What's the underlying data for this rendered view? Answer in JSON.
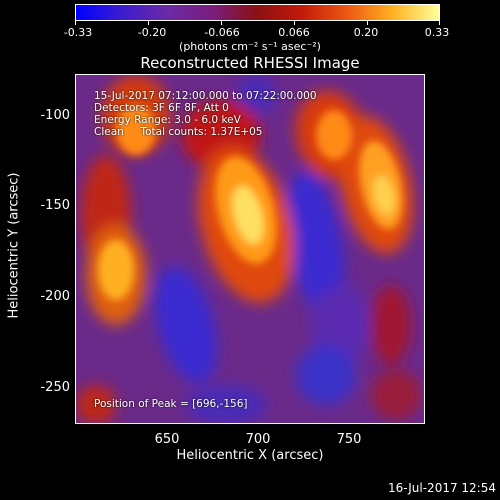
{
  "colorbar": {
    "ticks": [
      "-0.33",
      "-0.20",
      "-0.066",
      "0.066",
      "0.20",
      "0.33"
    ],
    "unit": "(photons cm⁻² s⁻¹ asec⁻²)"
  },
  "title": "Reconstructed RHESSI Image",
  "info": {
    "time_range": "15-Jul-2017 07:12:00.000 to 07:22:00.000",
    "detectors": "Detectors: 3F 6F 8F, Att 0",
    "energy": "Energy Range: 3.0 - 6.0 keV",
    "clean": "Clean     Total counts: 1.37E+05",
    "peak": "Position of Peak = [696,-156]"
  },
  "axes": {
    "xlabel": "Heliocentric X (arcsec)",
    "ylabel": "Heliocentric Y (arcsec)",
    "xticks": [
      "650",
      "700",
      "750"
    ],
    "yticks": [
      "-100",
      "-150",
      "-200",
      "-250"
    ]
  },
  "timestamp": "16-Jul-2017 12:54"
}
